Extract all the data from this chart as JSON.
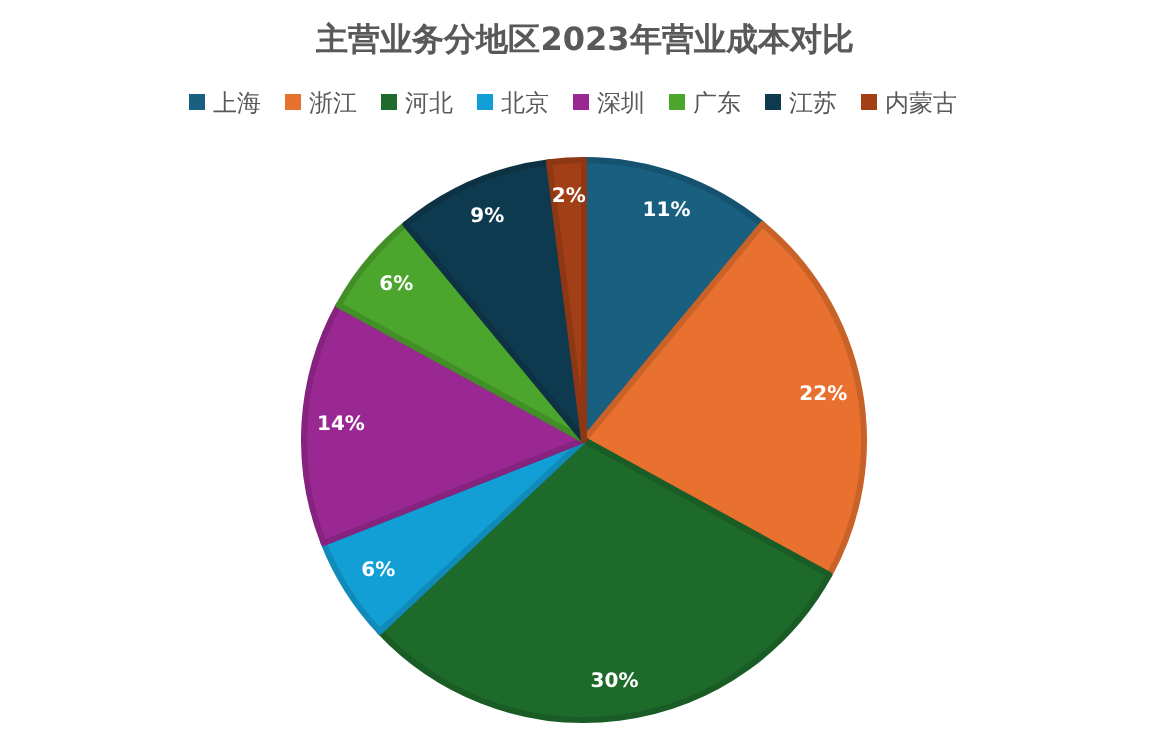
{
  "chart_data": {
    "type": "pie",
    "title": "主营业务分地区2023年营业成本对比",
    "categories": [
      "上海",
      "浙江",
      "河北",
      "北京",
      "深圳",
      "广东",
      "江苏",
      "内蒙古"
    ],
    "values": [
      11,
      22,
      30,
      6,
      14,
      6,
      9,
      2
    ],
    "value_labels": [
      "11%",
      "22%",
      "30%",
      "6%",
      "14%",
      "6%",
      "9%",
      "2%"
    ],
    "colors": [
      "#185f80",
      "#e8712f",
      "#1d6a2b",
      "#129fd5",
      "#992893",
      "#4ca52d",
      "#0e3a4f",
      "#a33f17"
    ],
    "legend": "top"
  }
}
